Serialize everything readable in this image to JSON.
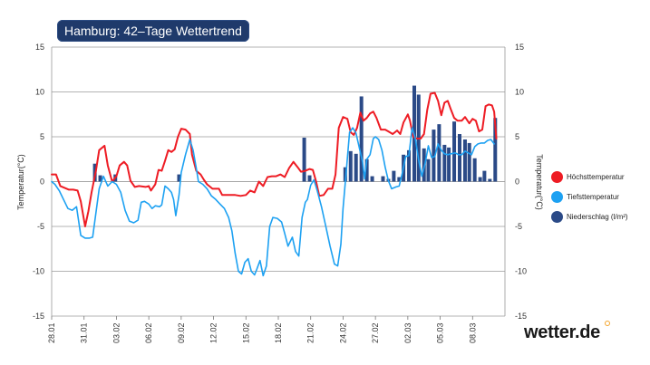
{
  "header": {
    "title": "Hamburg: 42–Tage Wettertrend"
  },
  "brand": {
    "logo_text": "wetter.de"
  },
  "legend": [
    {
      "label": "Höchsttemperatur",
      "color": "#ee1c24"
    },
    {
      "label": "Tiefsttemperatur",
      "color": "#1da1f2"
    },
    {
      "label": "Niederschlag (l/m²)",
      "color": "#2b4a87"
    }
  ],
  "chart_data": {
    "type": "line+bar",
    "title": "Hamburg: 42–Tage Wettertrend",
    "ylabel_left": "Temperatur(°C)",
    "ylabel_right": "Temperatur(°C)",
    "ylim": [
      -15,
      15
    ],
    "yticks": [
      15,
      10,
      5,
      0,
      -5,
      -10,
      -15
    ],
    "x_range": [
      0,
      42
    ],
    "xticks": [
      {
        "label": "28.01",
        "day": 0
      },
      {
        "label": "31.01",
        "day": 3
      },
      {
        "label": "03.02",
        "day": 6
      },
      {
        "label": "06.02",
        "day": 9
      },
      {
        "label": "09.02",
        "day": 12
      },
      {
        "label": "12.02",
        "day": 15
      },
      {
        "label": "15.02",
        "day": 18
      },
      {
        "label": "18.02",
        "day": 21
      },
      {
        "label": "21.02",
        "day": 24
      },
      {
        "label": "24.02",
        "day": 27
      },
      {
        "label": "27.02",
        "day": 30
      },
      {
        "label": "02.03",
        "day": 33
      },
      {
        "label": "05.03",
        "day": 36
      },
      {
        "label": "08.03",
        "day": 39
      }
    ],
    "series": [
      {
        "name": "Höchsttemperatur",
        "color": "#ee1c24",
        "points": [
          [
            0,
            0.8
          ],
          [
            0.4,
            0.8
          ],
          [
            0.8,
            -0.5
          ],
          [
            1.2,
            -0.7
          ],
          [
            1.6,
            -0.9
          ],
          [
            2,
            -0.9
          ],
          [
            2.4,
            -1.0
          ],
          [
            2.7,
            -2.2
          ],
          [
            3.1,
            -5.0
          ],
          [
            3.4,
            -3.3
          ],
          [
            3.7,
            -1.2
          ],
          [
            4.1,
            1.2
          ],
          [
            4.4,
            3.5
          ],
          [
            4.9,
            4.0
          ],
          [
            5.2,
            1.8
          ],
          [
            5.6,
            0.0
          ],
          [
            6.0,
            0.6
          ],
          [
            6.3,
            1.8
          ],
          [
            6.7,
            2.2
          ],
          [
            7.0,
            1.8
          ],
          [
            7.3,
            0.1
          ],
          [
            7.7,
            -0.6
          ],
          [
            8.1,
            -0.5
          ],
          [
            8.7,
            -0.6
          ],
          [
            9.0,
            -0.5
          ],
          [
            9.2,
            -1.0
          ],
          [
            9.6,
            -0.3
          ],
          [
            9.9,
            1.3
          ],
          [
            10.2,
            1.2
          ],
          [
            10.5,
            2.3
          ],
          [
            10.8,
            3.5
          ],
          [
            11.1,
            3.3
          ],
          [
            11.4,
            3.6
          ],
          [
            11.7,
            5.0
          ],
          [
            12.0,
            5.9
          ],
          [
            12.4,
            5.8
          ],
          [
            12.8,
            5.3
          ],
          [
            13.0,
            3.0
          ],
          [
            13.4,
            1.2
          ],
          [
            13.8,
            0.8
          ],
          [
            14.1,
            0.2
          ],
          [
            14.4,
            -0.3
          ],
          [
            14.9,
            -0.8
          ],
          [
            15.5,
            -0.8
          ],
          [
            15.8,
            -1.5
          ],
          [
            16.2,
            -1.5
          ],
          [
            17.0,
            -1.5
          ],
          [
            17.5,
            -1.6
          ],
          [
            18.0,
            -1.5
          ],
          [
            18.4,
            -1.0
          ],
          [
            18.8,
            -1.2
          ],
          [
            19.2,
            0.0
          ],
          [
            19.6,
            -0.5
          ],
          [
            20.0,
            0.5
          ],
          [
            20.4,
            0.6
          ],
          [
            20.8,
            0.6
          ],
          [
            21.2,
            0.8
          ],
          [
            21.6,
            0.5
          ],
          [
            22.0,
            1.5
          ],
          [
            22.4,
            2.2
          ],
          [
            22.8,
            1.6
          ],
          [
            23.1,
            1.1
          ],
          [
            23.5,
            1.2
          ],
          [
            23.9,
            1.4
          ],
          [
            24.2,
            1.3
          ],
          [
            24.5,
            0.0
          ],
          [
            24.8,
            -1.6
          ],
          [
            25.2,
            -1.5
          ],
          [
            25.6,
            -0.8
          ],
          [
            26.0,
            -0.8
          ],
          [
            26.3,
            0.8
          ],
          [
            26.6,
            6.0
          ],
          [
            27.0,
            7.2
          ],
          [
            27.4,
            7.0
          ],
          [
            27.7,
            5.5
          ],
          [
            28.0,
            5.2
          ],
          [
            28.3,
            6.0
          ],
          [
            28.6,
            7.7
          ],
          [
            28.9,
            6.8
          ],
          [
            29.2,
            7.1
          ],
          [
            29.5,
            7.6
          ],
          [
            29.8,
            7.8
          ],
          [
            30.1,
            7.1
          ],
          [
            30.5,
            5.8
          ],
          [
            30.9,
            5.8
          ],
          [
            31.2,
            5.6
          ],
          [
            31.6,
            5.3
          ],
          [
            32.0,
            5.7
          ],
          [
            32.3,
            5.3
          ],
          [
            32.6,
            6.6
          ],
          [
            33.0,
            7.5
          ],
          [
            33.2,
            6.8
          ],
          [
            33.5,
            5.0
          ],
          [
            33.8,
            4.8
          ],
          [
            34.2,
            4.8
          ],
          [
            34.5,
            5.3
          ],
          [
            34.8,
            8.0
          ],
          [
            35.1,
            9.8
          ],
          [
            35.5,
            9.9
          ],
          [
            35.8,
            9.0
          ],
          [
            36.1,
            7.4
          ],
          [
            36.4,
            8.8
          ],
          [
            36.7,
            9.0
          ],
          [
            37.0,
            8.0
          ],
          [
            37.3,
            7.1
          ],
          [
            37.6,
            6.8
          ],
          [
            38.0,
            6.8
          ],
          [
            38.3,
            7.2
          ],
          [
            38.7,
            6.5
          ],
          [
            39.0,
            7.0
          ],
          [
            39.3,
            6.8
          ],
          [
            39.6,
            5.6
          ],
          [
            39.9,
            5.8
          ],
          [
            40.2,
            8.4
          ],
          [
            40.5,
            8.6
          ],
          [
            40.8,
            8.5
          ],
          [
            41.0,
            7.8
          ],
          [
            41.2,
            4.8
          ]
        ]
      },
      {
        "name": "Tiefsttemperatur",
        "color": "#1da1f2",
        "points": [
          [
            0,
            0.0
          ],
          [
            0.3,
            -0.3
          ],
          [
            0.7,
            -1.0
          ],
          [
            1.1,
            -2.0
          ],
          [
            1.5,
            -3.0
          ],
          [
            1.9,
            -3.2
          ],
          [
            2.3,
            -2.8
          ],
          [
            2.7,
            -6.0
          ],
          [
            3.1,
            -6.3
          ],
          [
            3.5,
            -6.3
          ],
          [
            3.8,
            -6.2
          ],
          [
            4.1,
            -3.5
          ],
          [
            4.4,
            -0.8
          ],
          [
            4.8,
            0.6
          ],
          [
            5.2,
            -0.5
          ],
          [
            5.6,
            0.0
          ],
          [
            6.0,
            -0.3
          ],
          [
            6.4,
            -1.2
          ],
          [
            6.8,
            -3.2
          ],
          [
            7.2,
            -4.4
          ],
          [
            7.6,
            -4.6
          ],
          [
            8.0,
            -4.3
          ],
          [
            8.3,
            -2.3
          ],
          [
            8.6,
            -2.2
          ],
          [
            9.0,
            -2.5
          ],
          [
            9.3,
            -3.0
          ],
          [
            9.6,
            -2.7
          ],
          [
            10.0,
            -2.8
          ],
          [
            10.2,
            -2.6
          ],
          [
            10.5,
            -0.5
          ],
          [
            10.8,
            -0.8
          ],
          [
            11.1,
            -1.2
          ],
          [
            11.3,
            -2.0
          ],
          [
            11.5,
            -3.8
          ],
          [
            11.8,
            -1.5
          ],
          [
            12.0,
            1.0
          ],
          [
            12.4,
            3.0
          ],
          [
            12.8,
            4.7
          ],
          [
            13.1,
            3.5
          ],
          [
            13.4,
            1.5
          ],
          [
            13.6,
            0.0
          ],
          [
            14.0,
            -0.3
          ],
          [
            14.4,
            -0.8
          ],
          [
            14.8,
            -1.6
          ],
          [
            15.2,
            -2.0
          ],
          [
            15.6,
            -2.5
          ],
          [
            16.0,
            -3.0
          ],
          [
            16.4,
            -4.0
          ],
          [
            16.7,
            -5.5
          ],
          [
            17.0,
            -8.0
          ],
          [
            17.3,
            -10.0
          ],
          [
            17.6,
            -10.3
          ],
          [
            17.9,
            -9.0
          ],
          [
            18.2,
            -8.6
          ],
          [
            18.5,
            -10.0
          ],
          [
            18.8,
            -10.4
          ],
          [
            19.0,
            -9.8
          ],
          [
            19.3,
            -8.8
          ],
          [
            19.6,
            -10.5
          ],
          [
            19.9,
            -9.4
          ],
          [
            20.2,
            -5.0
          ],
          [
            20.5,
            -4.0
          ],
          [
            20.9,
            -4.1
          ],
          [
            21.3,
            -4.5
          ],
          [
            21.6,
            -5.8
          ],
          [
            21.9,
            -7.2
          ],
          [
            22.3,
            -6.2
          ],
          [
            22.6,
            -7.8
          ],
          [
            22.9,
            -8.3
          ],
          [
            23.2,
            -4.0
          ],
          [
            23.5,
            -2.3
          ],
          [
            23.7,
            -2.0
          ],
          [
            24.0,
            -0.4
          ],
          [
            24.3,
            0.2
          ],
          [
            24.6,
            -1.0
          ],
          [
            25.0,
            -2.8
          ],
          [
            25.4,
            -5.0
          ],
          [
            25.8,
            -7.2
          ],
          [
            26.2,
            -9.2
          ],
          [
            26.5,
            -9.4
          ],
          [
            26.8,
            -7.0
          ],
          [
            27.0,
            -3.0
          ],
          [
            27.3,
            1.2
          ],
          [
            27.6,
            5.5
          ],
          [
            27.9,
            6.0
          ],
          [
            28.2,
            5.4
          ],
          [
            28.5,
            3.8
          ],
          [
            28.8,
            2.2
          ],
          [
            29.0,
            0.3
          ],
          [
            29.2,
            2.5
          ],
          [
            29.5,
            3.0
          ],
          [
            29.8,
            4.8
          ],
          [
            30.0,
            5.0
          ],
          [
            30.3,
            4.7
          ],
          [
            30.6,
            3.5
          ],
          [
            30.9,
            1.6
          ],
          [
            31.2,
            0.1
          ],
          [
            31.5,
            -0.8
          ],
          [
            31.9,
            -0.6
          ],
          [
            32.2,
            -0.5
          ],
          [
            32.5,
            1.0
          ],
          [
            32.8,
            2.8
          ],
          [
            33.1,
            2.9
          ],
          [
            33.4,
            6.0
          ],
          [
            33.7,
            4.8
          ],
          [
            34.0,
            2.4
          ],
          [
            34.3,
            0.6
          ],
          [
            34.6,
            2.0
          ],
          [
            34.9,
            4.0
          ],
          [
            35.2,
            2.7
          ],
          [
            35.5,
            2.8
          ],
          [
            35.8,
            4.2
          ],
          [
            36.1,
            3.5
          ],
          [
            36.4,
            3.1
          ],
          [
            36.7,
            3.0
          ],
          [
            37.0,
            3.1
          ],
          [
            37.4,
            3.2
          ],
          [
            37.7,
            3.0
          ],
          [
            38.0,
            3.0
          ],
          [
            38.3,
            3.4
          ],
          [
            38.6,
            3.2
          ],
          [
            38.9,
            3.0
          ],
          [
            39.2,
            3.9
          ],
          [
            39.5,
            4.2
          ],
          [
            39.8,
            4.3
          ],
          [
            40.1,
            4.3
          ],
          [
            40.4,
            4.6
          ],
          [
            40.7,
            4.7
          ],
          [
            41.0,
            4.2
          ]
        ]
      }
    ],
    "precipitation": {
      "name": "Niederschlag (l/m²)",
      "color": "#2b4a87",
      "bars": [
        [
          4.0,
          2.0
        ],
        [
          4.5,
          0.7
        ],
        [
          5.9,
          0.8
        ],
        [
          11.8,
          0.8
        ],
        [
          23.4,
          4.9
        ],
        [
          23.9,
          0.7
        ],
        [
          27.2,
          1.6
        ],
        [
          27.7,
          3.4
        ],
        [
          28.2,
          3.1
        ],
        [
          28.7,
          9.5
        ],
        [
          29.2,
          2.5
        ],
        [
          29.7,
          0.6
        ],
        [
          30.7,
          0.6
        ],
        [
          31.2,
          0.3
        ],
        [
          31.7,
          1.2
        ],
        [
          32.2,
          0.5
        ],
        [
          32.6,
          3.0
        ],
        [
          33.1,
          3.5
        ],
        [
          33.6,
          10.7
        ],
        [
          34.0,
          9.7
        ],
        [
          34.5,
          3.7
        ],
        [
          34.9,
          2.5
        ],
        [
          35.4,
          5.8
        ],
        [
          35.9,
          6.4
        ],
        [
          36.4,
          4.1
        ],
        [
          36.8,
          3.8
        ],
        [
          37.3,
          6.7
        ],
        [
          37.8,
          5.3
        ],
        [
          38.3,
          4.7
        ],
        [
          38.7,
          4.3
        ],
        [
          39.2,
          2.6
        ],
        [
          39.7,
          0.5
        ],
        [
          40.1,
          1.2
        ],
        [
          40.6,
          0.3
        ],
        [
          41.1,
          7.1
        ]
      ]
    }
  }
}
